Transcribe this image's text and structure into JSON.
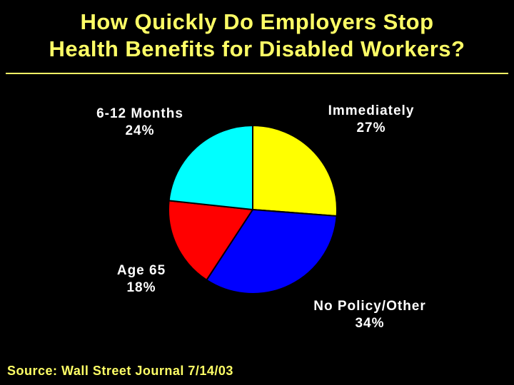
{
  "chart_data": {
    "type": "pie",
    "title_line1": "How Quickly Do Employers Stop",
    "title_line2": "Health Benefits for Disabled Workers?",
    "slices": [
      {
        "name": "Immediately",
        "value": 27,
        "label": "27%",
        "color": "#FFFF00"
      },
      {
        "name": "No Policy/Other",
        "value": 34,
        "label": "34%",
        "color": "#0000FF"
      },
      {
        "name": "Age 65",
        "value": 18,
        "label": "18%",
        "color": "#FF0000"
      },
      {
        "name": "6-12 Months",
        "value": 24,
        "label": "24%",
        "color": "#00FFFF"
      }
    ],
    "start_angle_deg": 0,
    "direction": "clockwise",
    "source": "Source: Wall Street Journal 7/14/03"
  },
  "colors": {
    "background": "#000000",
    "title": "#FFFF66",
    "label_text": "#FFFFFF"
  }
}
